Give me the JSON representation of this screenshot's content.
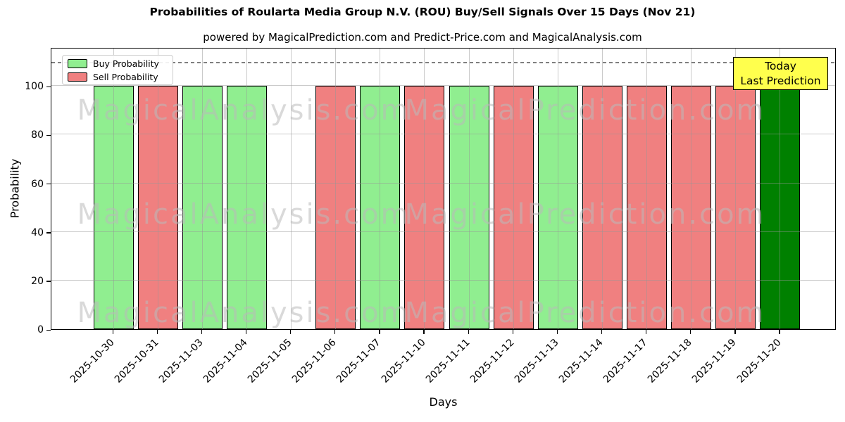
{
  "chart_data": {
    "type": "bar",
    "title": "Probabilities of Roularta Media Group N.V. (ROU) Buy/Sell Signals Over 15 Days (Nov 21)",
    "subtitle": "powered by MagicalPrediction.com and Predict-Price.com and MagicalAnalysis.com",
    "xlabel": "Days",
    "ylabel": "Probability",
    "ylim": [
      0,
      116
    ],
    "yticks": [
      0,
      20,
      40,
      60,
      80,
      100
    ],
    "grid": true,
    "legend_position": "upper left",
    "dashed_guide_y": 110,
    "categories": [
      "2025-10-30",
      "2025-10-31",
      "2025-11-03",
      "2025-11-04",
      "2025-11-05",
      "2025-11-06",
      "2025-11-07",
      "2025-11-10",
      "2025-11-11",
      "2025-11-12",
      "2025-11-13",
      "2025-11-14",
      "2025-11-17",
      "2025-11-18",
      "2025-11-19",
      "2025-11-20"
    ],
    "series": [
      {
        "name": "Buy Probability",
        "color": "#90ee90",
        "values": [
          100,
          0,
          100,
          100,
          0,
          0,
          100,
          0,
          100,
          0,
          100,
          0,
          0,
          0,
          0,
          100
        ]
      },
      {
        "name": "Sell Probability",
        "color": "#f08080",
        "values": [
          0,
          100,
          0,
          0,
          0,
          100,
          0,
          100,
          0,
          100,
          0,
          100,
          100,
          100,
          100,
          0
        ]
      }
    ],
    "today_index": 15,
    "today_color": "#008000"
  },
  "legend": {
    "items": [
      {
        "label": "Buy Probability",
        "color": "#90ee90"
      },
      {
        "label": "Sell Probability",
        "color": "#f08080"
      }
    ]
  },
  "annotation_box": {
    "line1": "Today",
    "line2": "Last Prediction",
    "bg_color": "#ffff4d",
    "border_color": "#000000"
  },
  "watermarks": {
    "left_text": "MagicalAnalysis.com",
    "right_text": "MagicalPrediction.com",
    "color": "rgba(185,185,185,0.55)"
  },
  "colors": {
    "bar_edge": "#000000",
    "grid": "rgba(150,150,150,0.5)",
    "dashed_line": "#7f7f7f",
    "axis": "#000000",
    "background": "#ffffff"
  }
}
